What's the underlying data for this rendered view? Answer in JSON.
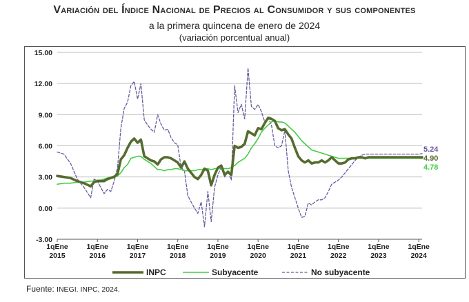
{
  "title": "Variación del Índice Nacional de Precios al Consumidor y sus componentes",
  "subtitle": "a la primera quincena de enero de 2024",
  "subtitle2": "(variación porcentual anual)",
  "source": {
    "label": "Fuente:",
    "text": "INEGI. INPC, 2024."
  },
  "colors": {
    "inpc": "#556b2f",
    "subyacente": "#44cc44",
    "no_subyacente": "#6a5a9e",
    "grid": "#bdbdbd",
    "text": "#222222"
  },
  "chart_data": {
    "type": "line",
    "title": "Variación del Índice Nacional de Precios al Consumidor y sus componentes",
    "xlabel": "",
    "ylabel": "",
    "x_unit": "quincena index (0 = 1qEne 2015, 24 per year)",
    "x": [
      0,
      4,
      8,
      12,
      16,
      20,
      22,
      24,
      26,
      28,
      30,
      32,
      34,
      36,
      38,
      40,
      42,
      44,
      46,
      48,
      50,
      52,
      54,
      56,
      58,
      60,
      62,
      64,
      66,
      68,
      70,
      72,
      74,
      76,
      78,
      80,
      82,
      84,
      86,
      88,
      90,
      92,
      94,
      96,
      98,
      100,
      102,
      104,
      106,
      108,
      110,
      112,
      114,
      116,
      118,
      120,
      122,
      124,
      126,
      128,
      130,
      132,
      134,
      136,
      138,
      140,
      142,
      144,
      146,
      148,
      150,
      152,
      154,
      156,
      158,
      160,
      162,
      164,
      166,
      168,
      170,
      172,
      174,
      176,
      178,
      180,
      182,
      184,
      186,
      188,
      190,
      192,
      194,
      196,
      198,
      200,
      202,
      204,
      206,
      208,
      210,
      212,
      214,
      216,
      218
    ],
    "xticks": [
      {
        "x": 0,
        "l1": "1qEne",
        "l2": "2015"
      },
      {
        "x": 24,
        "l1": "1qEne",
        "l2": "2016"
      },
      {
        "x": 48,
        "l1": "1qEne",
        "l2": "2017"
      },
      {
        "x": 72,
        "l1": "1qEne",
        "l2": "2018"
      },
      {
        "x": 96,
        "l1": "1qEne",
        "l2": "2019"
      },
      {
        "x": 120,
        "l1": "1qEne",
        "l2": "2020"
      },
      {
        "x": 144,
        "l1": "1qEne",
        "l2": "2021"
      },
      {
        "x": 168,
        "l1": "1qEne",
        "l2": "2022"
      },
      {
        "x": 192,
        "l1": "1qEne",
        "l2": "2023"
      },
      {
        "x": 216,
        "l1": "1qEne",
        "l2": "2024"
      }
    ],
    "yticks": [
      "-3.00",
      "0.00",
      "3.00",
      "6.00",
      "9.00",
      "12.00",
      "15.00"
    ],
    "ylim": [
      -3,
      15
    ],
    "xlim": [
      0,
      218
    ],
    "grid": "horizontal",
    "legend_position": "bottom",
    "series": [
      {
        "name": "INPC",
        "style": "solid-thick",
        "values": [
          3.1,
          3.0,
          2.9,
          2.6,
          2.4,
          2.1,
          2.5,
          2.6,
          2.6,
          2.6,
          2.8,
          2.9,
          3.0,
          3.3,
          4.7,
          5.1,
          5.8,
          6.4,
          6.7,
          6.3,
          6.6,
          5.0,
          4.8,
          4.6,
          4.5,
          4.2,
          4.7,
          4.9,
          4.9,
          4.8,
          4.6,
          4.4,
          3.9,
          4.5,
          3.8,
          3.4,
          3.0,
          2.8,
          3.2,
          3.8,
          3.6,
          2.2,
          3.2,
          3.9,
          4.1,
          3.2,
          3.5,
          3.2,
          6.0,
          5.8,
          5.9,
          6.2,
          7.4,
          7.2,
          7.0,
          7.7,
          7.6,
          8.2,
          8.7,
          8.6,
          8.4,
          7.7,
          7.5,
          7.6,
          7.1,
          6.7,
          5.8,
          5.0,
          4.6,
          4.4,
          4.6,
          4.3,
          4.4,
          4.4,
          4.6,
          4.4,
          4.6,
          4.9,
          4.6,
          4.3,
          4.3,
          4.4,
          4.7,
          4.8,
          4.8,
          4.9,
          4.9,
          4.8,
          4.9,
          4.9,
          4.9,
          4.9,
          4.9,
          4.9,
          4.9,
          4.9,
          4.9,
          4.9,
          4.9,
          4.9,
          4.9,
          4.9,
          4.9,
          4.9,
          4.9
        ]
      },
      {
        "name": "Subyacente",
        "style": "solid-thin",
        "values": [
          2.3,
          2.4,
          2.4,
          2.5,
          2.5,
          2.6,
          2.6,
          2.7,
          2.7,
          2.8,
          2.9,
          3.0,
          3.1,
          3.1,
          3.4,
          3.9,
          4.2,
          4.8,
          4.9,
          5.0,
          5.0,
          4.7,
          4.5,
          4.3,
          4.0,
          3.7,
          3.7,
          3.6,
          3.7,
          3.7,
          3.8,
          3.8,
          3.7,
          3.6,
          3.6,
          3.6,
          3.6,
          3.7,
          3.7,
          3.8,
          3.8,
          3.7,
          3.8,
          3.8,
          3.9,
          3.8,
          3.8,
          3.9,
          4.1,
          4.4,
          4.6,
          4.8,
          5.2,
          5.8,
          6.2,
          6.7,
          7.3,
          7.7,
          8.0,
          8.3,
          8.4,
          8.3,
          8.3,
          8.2,
          7.9,
          7.6,
          7.3,
          6.9,
          6.5,
          6.2,
          5.9,
          5.6,
          5.5,
          5.4,
          5.3,
          5.2,
          5.1,
          5.0,
          4.9,
          4.8,
          4.8,
          4.8,
          4.8,
          4.8,
          4.8,
          4.8,
          4.8,
          4.8,
          4.8,
          4.8,
          4.8,
          4.8,
          4.8,
          4.8,
          4.8,
          4.8,
          4.8,
          4.8,
          4.8,
          4.8,
          4.8,
          4.8,
          4.8,
          4.8,
          4.78
        ]
      },
      {
        "name": "No subyacente",
        "style": "dashed",
        "values": [
          5.4,
          5.2,
          4.3,
          2.8,
          2.0,
          1.0,
          2.8,
          2.6,
          2.0,
          1.4,
          1.8,
          1.6,
          2.6,
          3.9,
          7.7,
          9.6,
          10.2,
          11.8,
          12.2,
          10.5,
          12.0,
          8.5,
          8.0,
          7.6,
          7.3,
          9.0,
          8.1,
          7.5,
          7.6,
          6.8,
          6.3,
          6.1,
          3.9,
          3.6,
          1.2,
          0.6,
          0.0,
          -0.5,
          0.6,
          -1.8,
          1.6,
          -1.3,
          2.0,
          3.2,
          4.0,
          3.0,
          3.6,
          2.7,
          11.8,
          9.2,
          10.0,
          8.6,
          13.5,
          9.8,
          9.5,
          10.0,
          9.3,
          8.3,
          8.7,
          8.0,
          6.0,
          5.8,
          6.0,
          7.5,
          3.6,
          2.0,
          1.0,
          0.0,
          -0.9,
          -0.8,
          0.5,
          0.3,
          0.6,
          0.8,
          0.8,
          1.0,
          1.6,
          2.3,
          2.5,
          2.7,
          3.0,
          3.4,
          3.8,
          4.2,
          4.6,
          4.9,
          5.1,
          5.2,
          5.2,
          5.2,
          5.2,
          5.2,
          5.2,
          5.2,
          5.2,
          5.2,
          5.2,
          5.2,
          5.2,
          5.2,
          5.2,
          5.2,
          5.2,
          5.2,
          5.24
        ]
      }
    ],
    "end_labels": [
      {
        "series": "No subyacente",
        "text": "5.24"
      },
      {
        "series": "INPC",
        "text": "4.90"
      },
      {
        "series": "Subyacente",
        "text": "4.78"
      }
    ]
  }
}
